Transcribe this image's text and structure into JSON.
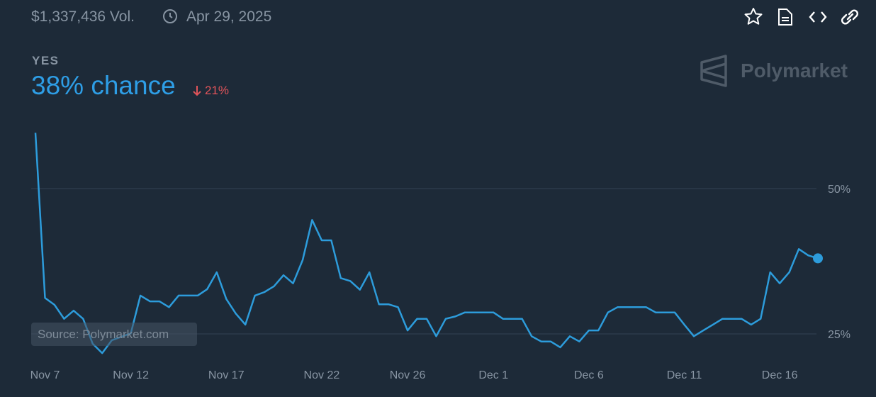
{
  "header": {
    "volume": "$1,337,436 Vol.",
    "date": "Apr 29, 2025"
  },
  "outcome": {
    "label": "YES",
    "chance": "38% chance",
    "change": "21%"
  },
  "brand": "Polymarket",
  "source": "Source: Polymarket.com",
  "chart_data": {
    "type": "line",
    "color": "#2d9cdb",
    "grid": true,
    "categories": [
      null,
      "Nov 7",
      null,
      null,
      null,
      null,
      null,
      null,
      null,
      null,
      "Nov 12",
      null,
      null,
      null,
      null,
      null,
      null,
      null,
      null,
      null,
      "Nov 17",
      null,
      null,
      null,
      null,
      null,
      null,
      null,
      null,
      null,
      "Nov 22",
      null,
      null,
      null,
      null,
      null,
      null,
      null,
      null,
      "Nov 26",
      null,
      null,
      null,
      null,
      null,
      null,
      null,
      null,
      "Dec 1",
      null,
      null,
      null,
      null,
      null,
      null,
      null,
      null,
      null,
      "Dec 6",
      null,
      null,
      null,
      null,
      null,
      null,
      null,
      null,
      null,
      "Dec 11",
      null,
      null,
      null,
      null,
      null,
      null,
      null,
      null,
      null,
      "Dec 16",
      null,
      null,
      null,
      null
    ],
    "values": [
      59.6,
      31.2,
      30.0,
      27.6,
      29.0,
      27.6,
      23.3,
      21.7,
      23.9,
      24.5,
      25.1,
      31.6,
      30.6,
      30.6,
      29.6,
      31.6,
      31.6,
      31.6,
      32.7,
      35.6,
      31.0,
      28.5,
      26.6,
      31.6,
      32.2,
      33.2,
      35.1,
      33.7,
      37.7,
      44.6,
      41.1,
      41.1,
      34.6,
      34.1,
      32.6,
      35.6,
      30.1,
      30.1,
      29.6,
      25.6,
      27.6,
      27.6,
      24.6,
      27.6,
      28.0,
      28.7,
      28.7,
      28.7,
      28.7,
      27.6,
      27.6,
      27.6,
      24.6,
      23.7,
      23.7,
      22.7,
      24.6,
      23.7,
      25.6,
      25.6,
      28.7,
      29.6,
      29.6,
      29.6,
      29.6,
      28.7,
      28.7,
      28.7,
      26.6,
      24.6,
      25.6,
      26.6,
      27.6,
      27.6,
      27.6,
      26.6,
      27.6,
      35.6,
      33.7,
      35.6,
      39.6,
      38.5,
      38.0
    ],
    "ylim": [
      20,
      60
    ],
    "yticks": [
      {
        "value": 25,
        "label": "25%"
      },
      {
        "value": 50,
        "label": "50%"
      }
    ]
  }
}
